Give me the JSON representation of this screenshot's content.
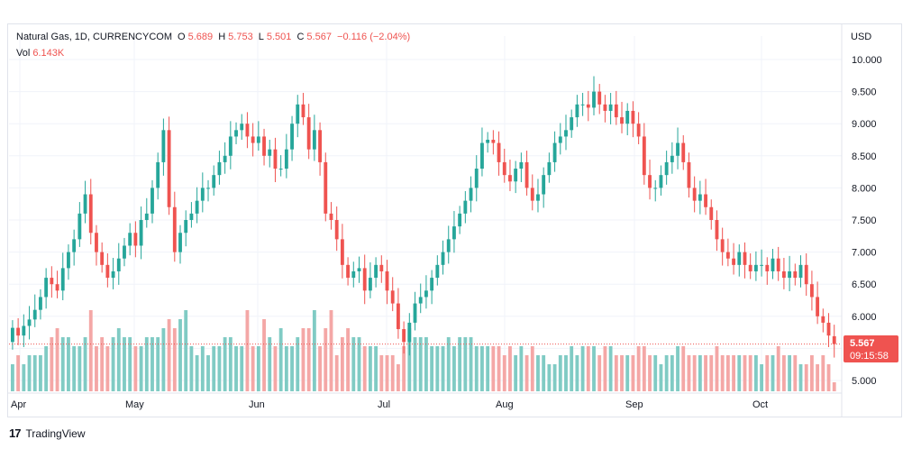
{
  "legend": {
    "symbol": "Natural Gas, 1D, CURRENCYCOM",
    "o_label": "O",
    "o_value": "5.689",
    "h_label": "H",
    "h_value": "5.753",
    "l_label": "L",
    "l_value": "5.501",
    "c_label": "C",
    "c_value": "5.567",
    "change": "−0.116 (−2.04%)",
    "vol_label": "Vol",
    "vol_value": "6.143K"
  },
  "currency_label": "USD",
  "last_price": {
    "price": "5.567",
    "countdown": "09:15:58"
  },
  "footer": {
    "logo": "17",
    "brand": "TradingView"
  },
  "colors": {
    "up": "#26a69a",
    "down": "#ef5350",
    "up_vol": "#80cbc4",
    "down_vol": "#f4a7a6",
    "grid": "#f0f3fa"
  },
  "chart_data": {
    "type": "candlestick",
    "y_ticks": [
      "10.000",
      "9.500",
      "9.000",
      "8.500",
      "8.000",
      "7.500",
      "7.000",
      "6.500",
      "6.000",
      "5.500",
      "5.000"
    ],
    "ylim": [
      5.0,
      10.0
    ],
    "x_ticks": [
      "Apr",
      "May",
      "Jun",
      "Jul",
      "Aug",
      "Sep",
      "Oct"
    ],
    "closes": [
      5.82,
      5.7,
      5.85,
      5.95,
      6.1,
      6.3,
      6.6,
      6.5,
      6.4,
      6.75,
      7.0,
      7.2,
      7.6,
      7.9,
      7.3,
      7.0,
      6.8,
      6.6,
      6.7,
      6.9,
      7.1,
      7.3,
      7.1,
      7.5,
      7.6,
      8.0,
      8.4,
      8.9,
      7.7,
      7.0,
      7.3,
      7.5,
      7.6,
      7.8,
      8.0,
      8.0,
      8.2,
      8.4,
      8.5,
      8.8,
      8.9,
      9.0,
      8.8,
      8.7,
      8.8,
      8.5,
      8.6,
      8.3,
      8.3,
      8.6,
      9.0,
      9.3,
      9.1,
      8.6,
      8.9,
      8.4,
      7.6,
      7.5,
      7.2,
      6.8,
      6.6,
      6.7,
      6.75,
      6.4,
      6.6,
      6.8,
      6.7,
      6.4,
      6.2,
      5.8,
      5.6,
      5.9,
      6.2,
      6.3,
      6.4,
      6.6,
      6.8,
      7.0,
      7.2,
      7.4,
      7.6,
      7.8,
      8.0,
      8.3,
      8.7,
      8.75,
      8.7,
      8.4,
      8.2,
      8.1,
      8.3,
      8.4,
      8.0,
      7.8,
      7.9,
      8.2,
      8.4,
      8.7,
      8.8,
      8.9,
      9.1,
      9.3,
      9.3,
      9.25,
      9.5,
      9.3,
      9.2,
      9.3,
      9.1,
      9.0,
      9.2,
      9.0,
      8.8,
      8.2,
      8.0,
      8.0,
      8.2,
      8.4,
      8.5,
      8.7,
      8.4,
      8.0,
      7.8,
      7.9,
      7.7,
      7.5,
      7.2,
      7.0,
      6.9,
      6.8,
      7.0,
      6.8,
      6.7,
      6.8,
      6.8,
      6.7,
      6.9,
      6.7,
      6.6,
      6.7,
      6.6,
      6.8,
      6.5,
      6.3,
      6.0,
      5.9,
      5.7,
      5.567
    ],
    "opens": [
      5.6,
      5.82,
      5.7,
      5.85,
      5.95,
      6.1,
      6.3,
      6.6,
      6.5,
      6.4,
      6.75,
      7.0,
      7.2,
      7.6,
      7.9,
      7.3,
      7.0,
      6.8,
      6.6,
      6.7,
      6.9,
      7.1,
      7.3,
      7.1,
      7.5,
      7.6,
      8.0,
      8.4,
      8.9,
      7.7,
      7.0,
      7.3,
      7.5,
      7.6,
      7.8,
      8.0,
      8.0,
      8.2,
      8.4,
      8.5,
      8.8,
      8.9,
      9.0,
      8.8,
      8.7,
      8.8,
      8.5,
      8.6,
      8.3,
      8.3,
      8.6,
      9.0,
      9.3,
      9.1,
      8.6,
      8.9,
      8.4,
      7.6,
      7.5,
      7.2,
      6.8,
      6.6,
      6.7,
      6.75,
      6.4,
      6.6,
      6.8,
      6.7,
      6.4,
      6.2,
      5.8,
      5.6,
      5.9,
      6.2,
      6.3,
      6.4,
      6.6,
      6.8,
      7.0,
      7.2,
      7.4,
      7.6,
      7.8,
      8.0,
      8.3,
      8.7,
      8.75,
      8.7,
      8.4,
      8.2,
      8.1,
      8.3,
      8.4,
      8.0,
      7.8,
      7.9,
      8.2,
      8.4,
      8.7,
      8.8,
      8.9,
      9.1,
      9.3,
      9.3,
      9.25,
      9.5,
      9.3,
      9.2,
      9.3,
      9.1,
      9.0,
      9.2,
      9.0,
      8.8,
      8.2,
      8.0,
      8.0,
      8.2,
      8.4,
      8.5,
      8.7,
      8.4,
      8.0,
      7.8,
      7.9,
      7.7,
      7.5,
      7.2,
      7.0,
      6.9,
      6.8,
      7.0,
      6.8,
      6.7,
      6.8,
      6.8,
      6.7,
      6.9,
      6.7,
      6.6,
      6.7,
      6.6,
      6.8,
      6.5,
      6.3,
      6.0,
      5.9,
      5.689
    ],
    "volumes": [
      3,
      4,
      3,
      4,
      4,
      4,
      5,
      6,
      7,
      6,
      6,
      5,
      5,
      6,
      9,
      5,
      6,
      5,
      6,
      7,
      6,
      6,
      5,
      5,
      6,
      6,
      6,
      7,
      8,
      7,
      8,
      9,
      5,
      4,
      5,
      4,
      5,
      5,
      6,
      6,
      5,
      5,
      9,
      5,
      5,
      8,
      6,
      5,
      7,
      5,
      5,
      6,
      7,
      7,
      9,
      5,
      7,
      9,
      4,
      6,
      7,
      6,
      6,
      5,
      5,
      5,
      4,
      4,
      4,
      3,
      5,
      7,
      6,
      6,
      6,
      5,
      5,
      5,
      6,
      5,
      6,
      6,
      6,
      5,
      5,
      5,
      5,
      5,
      4,
      5,
      4,
      5,
      4,
      5,
      4,
      4,
      3,
      3,
      4,
      4,
      5,
      4,
      5,
      5,
      5,
      4,
      5,
      5,
      4,
      4,
      4,
      4,
      5,
      5,
      4,
      4,
      3,
      4,
      4,
      5,
      5,
      4,
      4,
      4,
      4,
      4,
      5,
      4,
      4,
      4,
      4,
      4,
      4,
      4,
      3,
      4,
      4,
      5,
      4,
      4,
      4,
      3,
      3,
      4,
      3,
      4,
      3,
      1
    ]
  }
}
